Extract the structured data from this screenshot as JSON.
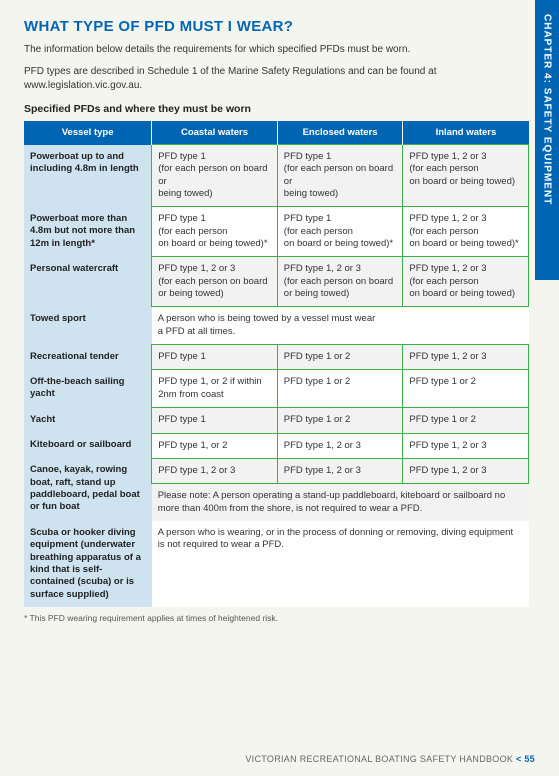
{
  "sideTab": "CHAPTER 4: SAFETY EQUIPMENT",
  "heading": "WHAT TYPE OF PFD MUST I WEAR?",
  "intro1": "The information below details the requirements for which specified PFDs must be worn.",
  "intro2": "PFD types are described in Schedule 1 of the Marine Safety Regulations and can be found at www.legislation.vic.gov.au.",
  "subhead": "Specified PFDs and where they must be worn",
  "columns": [
    "Vessel type",
    "Coastal waters",
    "Enclosed waters",
    "Inland waters"
  ],
  "rows": [
    {
      "vessel": "Powerboat up to and including 4.8m in length",
      "coastal": "PFD type 1\n(for each person on board or\nbeing towed)",
      "enclosed": "PFD type 1\n(for each person on board or\nbeing towed)",
      "inland": "PFD type 1, 2 or 3\n(for each person\non board or being towed)",
      "alt": true,
      "green": true
    },
    {
      "vessel": "Powerboat more than 4.8m but not more than 12m in length*",
      "coastal": "PFD type 1\n(for each person\non board or being towed)*",
      "enclosed": "PFD type 1\n(for each person\non board or being towed)*",
      "inland": "PFD type 1, 2 or 3\n(for each person\non board or being towed)*",
      "alt": false,
      "green": true
    },
    {
      "vessel": "Personal watercraft",
      "coastal": "PFD type 1, 2 or 3\n(for each person on board or being towed)",
      "enclosed": "PFD type 1, 2 or 3\n(for each person on board or being towed)",
      "inland": "PFD type 1, 2 or 3\n(for each person\non board or being towed)",
      "alt": true,
      "green": true
    },
    {
      "vessel": "Towed sport",
      "span": "A person who is being towed by a vessel must wear\na PFD at all times.",
      "alt": false
    },
    {
      "vessel": "Recreational tender",
      "coastal": "PFD type 1",
      "enclosed": "PFD type 1 or 2",
      "inland": "PFD type 1, 2 or 3",
      "alt": true,
      "green": true
    },
    {
      "vessel": "Off-the-beach sailing yacht",
      "coastal": "PFD type 1, or 2 if within 2nm from coast",
      "enclosed": "PFD type 1 or 2",
      "inland": "PFD type 1 or 2",
      "alt": false,
      "green": true
    },
    {
      "vessel": "Yacht",
      "coastal": "PFD type 1",
      "enclosed": "PFD type 1 or 2",
      "inland": "PFD type 1 or 2",
      "alt": true,
      "green": true
    },
    {
      "vessel": "Kiteboard or sailboard",
      "coastal": "PFD type 1, or 2",
      "enclosed": "PFD type 1, 2 or 3",
      "inland": "PFD type 1, 2 or 3",
      "alt": false,
      "green": true
    },
    {
      "vessel": "Canoe, kayak, rowing boat, raft, stand up paddleboard, pedal boat or fun boat",
      "coastal": "PFD type 1, 2 or 3",
      "enclosed": "PFD type 1, 2 or 3",
      "inland": "PFD type 1, 2 or 3",
      "alt": true,
      "green": true,
      "note": "Please note: A person operating a stand-up paddleboard, kiteboard or sailboard no more than 400m from the shore, is not required to wear a PFD."
    },
    {
      "vessel": "Scuba or hooker diving equipment (underwater breathing apparatus of a kind that is self-contained (scuba) or is surface supplied)",
      "span": "A person who is wearing, or in the process of donning or removing, diving equipment is not required to wear a PFD.",
      "alt": false
    }
  ],
  "footnote": "* This PFD wearing requirement applies at times of heightened risk.",
  "footerText": "VICTORIAN RECREATIONAL BOATING SAFETY HANDBOOK",
  "footerSep": " < ",
  "footerPage": "55"
}
